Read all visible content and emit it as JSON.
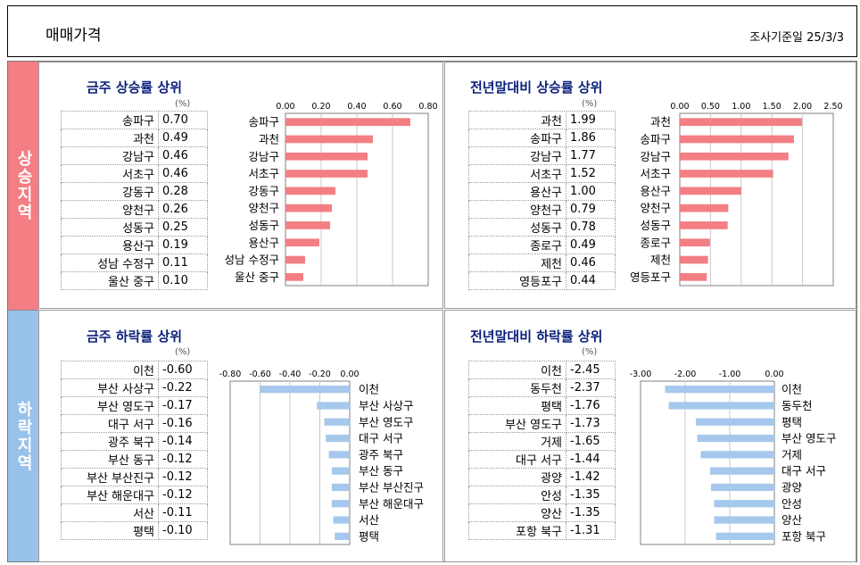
{
  "header": {
    "title": "매매가격",
    "survey_date": "조사기준일  25/3/3"
  },
  "side_labels": {
    "rise": "상승지역",
    "fall": "하락지역"
  },
  "unit": "(%)",
  "colors": {
    "rise_bar": "#f37e83",
    "fall_bar": "#a5c8ec"
  },
  "chart_data": [
    {
      "type": "bar",
      "title": "금주 상승률 상위",
      "categories": [
        "송파구",
        "과천",
        "강남구",
        "서초구",
        "강동구",
        "양천구",
        "성동구",
        "용산구",
        "성남 수정구",
        "울산 중구"
      ],
      "values": [
        0.7,
        0.49,
        0.46,
        0.46,
        0.28,
        0.26,
        0.25,
        0.19,
        0.11,
        0.1
      ],
      "value_labels": [
        "0.70",
        "0.49",
        "0.46",
        "0.46",
        "0.28",
        "0.26",
        "0.25",
        "0.19",
        "0.11",
        "0.10"
      ],
      "xlim": [
        0,
        0.8
      ],
      "ticks": [
        "0.00",
        "0.20",
        "0.40",
        "0.60",
        "0.80"
      ],
      "tick_values": [
        0,
        0.2,
        0.4,
        0.6,
        0.8
      ]
    },
    {
      "type": "bar",
      "title": "전년말대비 상승률 상위",
      "categories": [
        "과천",
        "송파구",
        "강남구",
        "서초구",
        "용산구",
        "양천구",
        "성동구",
        "종로구",
        "제천",
        "영등포구"
      ],
      "values": [
        1.99,
        1.86,
        1.77,
        1.52,
        1.0,
        0.79,
        0.78,
        0.49,
        0.46,
        0.44
      ],
      "value_labels": [
        "1.99",
        "1.86",
        "1.77",
        "1.52",
        "1.00",
        "0.79",
        "0.78",
        "0.49",
        "0.46",
        "0.44"
      ],
      "xlim": [
        0,
        2.5
      ],
      "ticks": [
        "0.00",
        "0.50",
        "1.00",
        "1.50",
        "2.00",
        "2.50"
      ],
      "tick_values": [
        0,
        0.5,
        1,
        1.5,
        2,
        2.5
      ]
    },
    {
      "type": "bar",
      "title": "금주 하락률 상위",
      "categories": [
        "이천",
        "부산 사상구",
        "부산 영도구",
        "대구 서구",
        "광주 북구",
        "부산 동구",
        "부산 부산진구",
        "부산 해운대구",
        "서산",
        "평택"
      ],
      "values": [
        -0.6,
        -0.22,
        -0.17,
        -0.16,
        -0.14,
        -0.12,
        -0.12,
        -0.12,
        -0.11,
        -0.1
      ],
      "value_labels": [
        "-0.60",
        "-0.22",
        "-0.17",
        "-0.16",
        "-0.14",
        "-0.12",
        "-0.12",
        "-0.12",
        "-0.11",
        "-0.10"
      ],
      "xlim": [
        -0.8,
        0
      ],
      "ticks": [
        "-0.80",
        "-0.60",
        "-0.40",
        "-0.20",
        "0.00"
      ],
      "tick_values": [
        -0.8,
        -0.6,
        -0.4,
        -0.2,
        0
      ]
    },
    {
      "type": "bar",
      "title": "전년말대비 하락률 상위",
      "categories": [
        "이천",
        "동두천",
        "평택",
        "부산 영도구",
        "거제",
        "대구 서구",
        "광양",
        "안성",
        "양산",
        "포항 북구"
      ],
      "values": [
        -2.45,
        -2.37,
        -1.76,
        -1.73,
        -1.65,
        -1.44,
        -1.42,
        -1.35,
        -1.35,
        -1.31
      ],
      "value_labels": [
        "-2.45",
        "-2.37",
        "-1.76",
        "-1.73",
        "-1.65",
        "-1.44",
        "-1.42",
        "-1.35",
        "-1.35",
        "-1.31"
      ],
      "xlim": [
        -3,
        0
      ],
      "ticks": [
        "-3.00",
        "-2.00",
        "-1.00",
        "0.00"
      ],
      "tick_values": [
        -3,
        -2,
        -1,
        0
      ]
    }
  ]
}
